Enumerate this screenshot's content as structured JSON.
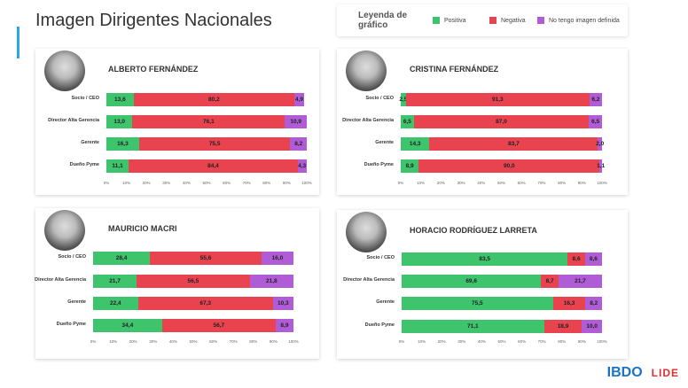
{
  "title": "Imagen Dirigentes Nacionales",
  "legend": {
    "title": "Leyenda de gráfico",
    "items": [
      {
        "label": "Positiva",
        "color": "#3ec46d"
      },
      {
        "label": "Negativa",
        "color": "#e8434f"
      },
      {
        "label": "No tengo imagen definida",
        "color": "#b05cd6"
      }
    ]
  },
  "logos": {
    "bdo": "IBDO",
    "lide": "LIDE"
  },
  "chart_data": [
    {
      "type": "bar",
      "stacked": true,
      "orientation": "horizontal",
      "title": "ALBERTO FERNÁNDEZ",
      "categories": [
        "Socio / CEO",
        "Director Alta Gerencia",
        "Gerente",
        "Dueño Pyme"
      ],
      "xlim": [
        0,
        100
      ],
      "xticks": [
        "0%",
        "10%",
        "20%",
        "30%",
        "40%",
        "50%",
        "60%",
        "70%",
        "80%",
        "90%",
        "100%"
      ],
      "series": [
        {
          "name": "Positiva",
          "values": [
            13.6,
            13.0,
            16.3,
            11.1
          ]
        },
        {
          "name": "Negativa",
          "values": [
            80.2,
            76.1,
            75.5,
            84.4
          ]
        },
        {
          "name": "No tengo imagen definida",
          "values": [
            4.9,
            10.9,
            8.2,
            4.3
          ]
        }
      ]
    },
    {
      "type": "bar",
      "stacked": true,
      "orientation": "horizontal",
      "title": "CRISTINA FERNÁNDEZ",
      "categories": [
        "Socio / CEO",
        "Director Alta Gerencia",
        "Gerente",
        "Dueño Pyme"
      ],
      "xlim": [
        0,
        100
      ],
      "xticks": [
        "0%",
        "10%",
        "20%",
        "30%",
        "40%",
        "50%",
        "60%",
        "70%",
        "80%",
        "90%",
        "100%"
      ],
      "series": [
        {
          "name": "Positiva",
          "values": [
            2.5,
            6.5,
            14.3,
            8.9
          ]
        },
        {
          "name": "Negativa",
          "values": [
            91.3,
            87.0,
            83.7,
            90.0
          ]
        },
        {
          "name": "No tengo imagen definida",
          "values": [
            6.2,
            6.5,
            2.0,
            1.1
          ]
        }
      ]
    },
    {
      "type": "bar",
      "stacked": true,
      "orientation": "horizontal",
      "title": "MAURICIO MACRI",
      "categories": [
        "Socio / CEO",
        "Director Alta Gerencia",
        "Gerente",
        "Dueño Pyme"
      ],
      "xlim": [
        0,
        100
      ],
      "xticks": [
        "0%",
        "10%",
        "20%",
        "30%",
        "40%",
        "50%",
        "60%",
        "70%",
        "80%",
        "90%",
        "100%"
      ],
      "series": [
        {
          "name": "Positiva",
          "values": [
            28.4,
            21.7,
            22.4,
            34.4
          ]
        },
        {
          "name": "Negativa",
          "values": [
            55.6,
            56.5,
            67.3,
            56.7
          ]
        },
        {
          "name": "No tengo imagen definida",
          "values": [
            16.0,
            21.8,
            10.3,
            8.9
          ]
        }
      ]
    },
    {
      "type": "bar",
      "stacked": true,
      "orientation": "horizontal",
      "title": "HORACIO RODRÍGUEZ LARRETA",
      "categories": [
        "Socio / CEO",
        "Director Alta Gerencia",
        "Gerente",
        "Dueño Pyme"
      ],
      "xlim": [
        0,
        100
      ],
      "xticks": [
        "0%",
        "10%",
        "20%",
        "30%",
        "40%",
        "50%",
        "60%",
        "70%",
        "80%",
        "90%",
        "100%"
      ],
      "series": [
        {
          "name": "Positiva",
          "values": [
            83.5,
            69.6,
            75.5,
            71.1
          ]
        },
        {
          "name": "Negativa",
          "values": [
            8.6,
            8.7,
            16.3,
            18.9
          ]
        },
        {
          "name": "No tengo imagen definida",
          "values": [
            8.6,
            21.7,
            8.2,
            10.0
          ]
        }
      ]
    }
  ]
}
